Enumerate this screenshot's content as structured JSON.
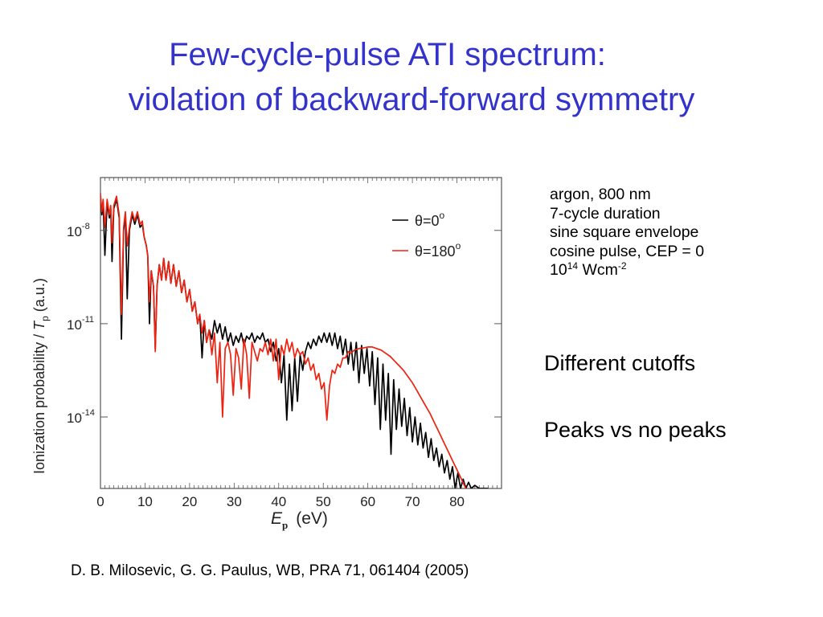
{
  "slide": {
    "title_line1": "Few-cycle-pulse ATI spectrum:",
    "title_line2": "violation of backward-forward symmetry",
    "title_color": "#3333cc",
    "parameters": {
      "line1": "argon,  800 nm",
      "line2": "7-cycle duration",
      "line3": "sine square envelope",
      "line4": "cosine pulse, CEP = 0",
      "line5_base": "10",
      "line5_exp": "14",
      "line5_unit": " Wcm",
      "line5_unit_exp": "-2"
    },
    "notes": [
      "Different cutoffs",
      "Peaks vs no peaks"
    ],
    "citation": "D. B. Milosevic, G. G. Paulus, WB,  PRA 71, 061404 (2005)"
  },
  "chart_data": {
    "type": "line",
    "title": "",
    "xlabel_main": "E",
    "xlabel_sub": "p",
    "xlabel_unit": "(eV)",
    "ylabel_main": "Ionization probability / ",
    "ylabel_T": "T",
    "ylabel_sub": "p",
    "ylabel_unit": " (a.u.)",
    "y_scale": "log",
    "xlim": [
      0,
      90
    ],
    "ylim_log10": [
      -16.3,
      -6.3
    ],
    "x_ticks": [
      0,
      10,
      20,
      30,
      40,
      50,
      60,
      70,
      80
    ],
    "x_tick_labels": [
      "0",
      "10",
      "20",
      "30",
      "40",
      "50",
      "60",
      "70",
      "80"
    ],
    "y_ticks_log10": [
      -8,
      -11,
      -14
    ],
    "y_tick_labels": [
      {
        "base": "10",
        "exp": "-8"
      },
      {
        "base": "10",
        "exp": "-11"
      },
      {
        "base": "10",
        "exp": "-14"
      }
    ],
    "legend": {
      "placement": "top-right",
      "entries": [
        {
          "label_prefix": "θ=0",
          "label_sup": "o",
          "color": "#000000"
        },
        {
          "label_prefix": "θ=180",
          "label_sup": "o",
          "color": "#ee2211"
        }
      ]
    },
    "series": [
      {
        "name": "θ=0°",
        "color": "#000000",
        "points_log10": [
          [
            0,
            -6.9
          ],
          [
            0.3,
            -7.5
          ],
          [
            0.6,
            -7.1
          ],
          [
            1.0,
            -8.8
          ],
          [
            1.5,
            -7.1
          ],
          [
            2.0,
            -7.6
          ],
          [
            2.3,
            -7.3
          ],
          [
            2.6,
            -9.0
          ],
          [
            3.0,
            -7.3
          ],
          [
            3.6,
            -7.0
          ],
          [
            4.2,
            -7.6
          ],
          [
            4.7,
            -11.5
          ],
          [
            5.2,
            -8.0
          ],
          [
            5.6,
            -7.5
          ],
          [
            6.0,
            -10.2
          ],
          [
            6.5,
            -8.0
          ],
          [
            7.1,
            -7.5
          ],
          [
            7.7,
            -7.8
          ],
          [
            8.3,
            -7.5
          ],
          [
            8.9,
            -7.9
          ],
          [
            9.4,
            -7.8
          ],
          [
            9.8,
            -8.2
          ],
          [
            10.3,
            -8.5
          ],
          [
            10.6,
            -8.8
          ],
          [
            11.0,
            -11.0
          ],
          [
            11.4,
            -9.3
          ],
          [
            11.9,
            -9.8
          ],
          [
            12.3,
            -11.8
          ],
          [
            12.7,
            -9.8
          ],
          [
            13.2,
            -9.1
          ],
          [
            13.7,
            -9.6
          ],
          [
            14.2,
            -8.9
          ],
          [
            14.7,
            -9.6
          ],
          [
            15.3,
            -9.0
          ],
          [
            15.8,
            -9.7
          ],
          [
            16.4,
            -9.1
          ],
          [
            17.0,
            -9.8
          ],
          [
            17.6,
            -9.3
          ],
          [
            18.2,
            -10.0
          ],
          [
            18.8,
            -9.6
          ],
          [
            19.4,
            -10.3
          ],
          [
            20.0,
            -9.9
          ],
          [
            20.6,
            -10.6
          ],
          [
            21.2,
            -10.3
          ],
          [
            21.8,
            -11.0
          ],
          [
            22.3,
            -10.7
          ],
          [
            22.8,
            -12.1
          ],
          [
            23.3,
            -10.9
          ],
          [
            23.8,
            -11.6
          ],
          [
            24.4,
            -11.2
          ],
          [
            25.0,
            -11.5
          ],
          [
            25.6,
            -10.9
          ],
          [
            26.2,
            -11.3
          ],
          [
            26.8,
            -11.0
          ],
          [
            27.4,
            -11.5
          ],
          [
            28.0,
            -11.1
          ],
          [
            28.6,
            -11.6
          ],
          [
            29.2,
            -11.3
          ],
          [
            29.8,
            -11.7
          ],
          [
            30.4,
            -11.4
          ],
          [
            31.0,
            -11.6
          ],
          [
            31.6,
            -11.3
          ],
          [
            32.2,
            -11.7
          ],
          [
            32.8,
            -11.4
          ],
          [
            33.4,
            -11.5
          ],
          [
            34.0,
            -11.3
          ],
          [
            34.6,
            -11.6
          ],
          [
            35.2,
            -11.4
          ],
          [
            35.8,
            -11.5
          ],
          [
            36.4,
            -11.3
          ],
          [
            37.0,
            -11.6
          ],
          [
            37.6,
            -11.5
          ],
          [
            38.2,
            -11.9
          ],
          [
            38.8,
            -11.6
          ],
          [
            39.4,
            -12.2
          ],
          [
            40.0,
            -11.8
          ],
          [
            40.6,
            -12.9
          ],
          [
            41.2,
            -12.0
          ],
          [
            41.8,
            -14.1
          ],
          [
            42.4,
            -12.3
          ],
          [
            43.0,
            -13.8
          ],
          [
            43.6,
            -12.1
          ],
          [
            44.2,
            -13.5
          ],
          [
            44.8,
            -12.0
          ],
          [
            45.4,
            -12.5
          ],
          [
            46.0,
            -11.9
          ],
          [
            46.6,
            -11.6
          ],
          [
            47.2,
            -11.8
          ],
          [
            47.8,
            -11.5
          ],
          [
            48.4,
            -11.7
          ],
          [
            49.0,
            -11.4
          ],
          [
            49.6,
            -11.6
          ],
          [
            50.2,
            -11.3
          ],
          [
            50.8,
            -11.6
          ],
          [
            51.4,
            -11.3
          ],
          [
            52.0,
            -11.7
          ],
          [
            52.6,
            -11.3
          ],
          [
            53.2,
            -11.8
          ],
          [
            53.8,
            -11.4
          ],
          [
            54.4,
            -12.0
          ],
          [
            55.0,
            -11.5
          ],
          [
            55.6,
            -12.3
          ],
          [
            56.2,
            -11.6
          ],
          [
            56.8,
            -12.5
          ],
          [
            57.4,
            -11.6
          ],
          [
            58.0,
            -12.9
          ],
          [
            58.6,
            -11.7
          ],
          [
            59.2,
            -12.6
          ],
          [
            59.8,
            -11.8
          ],
          [
            60.4,
            -13.0
          ],
          [
            61.0,
            -11.9
          ],
          [
            61.6,
            -13.6
          ],
          [
            62.2,
            -12.1
          ],
          [
            62.8,
            -14.4
          ],
          [
            63.4,
            -12.3
          ],
          [
            64.0,
            -14.1
          ],
          [
            64.6,
            -12.6
          ],
          [
            65.2,
            -15.2
          ],
          [
            65.8,
            -12.8
          ],
          [
            66.4,
            -14.4
          ],
          [
            67.0,
            -13.1
          ],
          [
            67.6,
            -14.3
          ],
          [
            68.2,
            -13.4
          ],
          [
            68.8,
            -14.6
          ],
          [
            69.4,
            -13.7
          ],
          [
            70.0,
            -14.8
          ],
          [
            70.6,
            -14.0
          ],
          [
            71.2,
            -14.9
          ],
          [
            71.8,
            -14.2
          ],
          [
            72.4,
            -15.0
          ],
          [
            73.0,
            -14.5
          ],
          [
            73.6,
            -15.3
          ],
          [
            74.2,
            -14.7
          ],
          [
            74.8,
            -15.4
          ],
          [
            75.4,
            -15.0
          ],
          [
            76.0,
            -15.6
          ],
          [
            76.6,
            -15.2
          ],
          [
            77.2,
            -15.8
          ],
          [
            77.8,
            -15.4
          ],
          [
            78.4,
            -16.0
          ],
          [
            79.0,
            -15.6
          ],
          [
            79.6,
            -16.3
          ],
          [
            80.2,
            -15.8
          ],
          [
            80.8,
            -16.3
          ],
          [
            81.4,
            -16.0
          ],
          [
            82.0,
            -16.3
          ],
          [
            82.6,
            -16.1
          ],
          [
            83.2,
            -16.3
          ],
          [
            84.0,
            -16.2
          ],
          [
            85.0,
            -16.3
          ],
          [
            86.0,
            -16.3
          ],
          [
            87.0,
            -16.3
          ]
        ]
      },
      {
        "name": "θ=180°",
        "color": "#ee2211",
        "points_log10": [
          [
            0,
            -6.8
          ],
          [
            0.3,
            -7.4
          ],
          [
            0.6,
            -7.0
          ],
          [
            1.0,
            -7.9
          ],
          [
            1.5,
            -7.0
          ],
          [
            2.0,
            -7.5
          ],
          [
            2.3,
            -7.2
          ],
          [
            2.6,
            -8.4
          ],
          [
            3.0,
            -7.2
          ],
          [
            3.6,
            -6.9
          ],
          [
            4.2,
            -7.5
          ],
          [
            4.7,
            -10.7
          ],
          [
            5.2,
            -7.9
          ],
          [
            5.6,
            -7.4
          ],
          [
            6.0,
            -8.5
          ],
          [
            6.5,
            -7.9
          ],
          [
            7.1,
            -7.4
          ],
          [
            7.7,
            -7.7
          ],
          [
            8.3,
            -7.4
          ],
          [
            8.9,
            -7.8
          ],
          [
            9.4,
            -7.7
          ],
          [
            9.8,
            -8.2
          ],
          [
            10.3,
            -8.5
          ],
          [
            10.6,
            -8.8
          ],
          [
            11.0,
            -10.3
          ],
          [
            11.4,
            -9.3
          ],
          [
            11.9,
            -9.8
          ],
          [
            12.3,
            -11.9
          ],
          [
            12.7,
            -9.8
          ],
          [
            13.2,
            -9.1
          ],
          [
            13.7,
            -9.6
          ],
          [
            14.2,
            -8.9
          ],
          [
            14.7,
            -9.6
          ],
          [
            15.3,
            -9.0
          ],
          [
            15.8,
            -9.7
          ],
          [
            16.4,
            -9.1
          ],
          [
            17.0,
            -9.8
          ],
          [
            17.6,
            -9.3
          ],
          [
            18.2,
            -10.0
          ],
          [
            18.8,
            -9.6
          ],
          [
            19.4,
            -10.3
          ],
          [
            20.0,
            -9.9
          ],
          [
            20.6,
            -10.6
          ],
          [
            21.2,
            -10.3
          ],
          [
            21.8,
            -11.0
          ],
          [
            22.3,
            -10.7
          ],
          [
            22.8,
            -11.3
          ],
          [
            23.3,
            -10.9
          ],
          [
            23.8,
            -11.6
          ],
          [
            24.4,
            -11.2
          ],
          [
            25.0,
            -12.0
          ],
          [
            25.6,
            -11.3
          ],
          [
            26.2,
            -12.9
          ],
          [
            26.8,
            -11.6
          ],
          [
            27.4,
            -14.0
          ],
          [
            28.0,
            -11.8
          ],
          [
            28.6,
            -11.6
          ],
          [
            29.2,
            -12.0
          ],
          [
            29.8,
            -13.3
          ],
          [
            30.4,
            -11.8
          ],
          [
            31.0,
            -12.1
          ],
          [
            31.6,
            -13.1
          ],
          [
            32.2,
            -11.5
          ],
          [
            32.8,
            -12.0
          ],
          [
            33.4,
            -13.4
          ],
          [
            34.0,
            -11.6
          ],
          [
            34.6,
            -11.9
          ],
          [
            35.2,
            -12.2
          ],
          [
            35.8,
            -11.8
          ],
          [
            36.4,
            -11.9
          ],
          [
            37.0,
            -11.6
          ],
          [
            37.6,
            -12.0
          ],
          [
            38.2,
            -11.5
          ],
          [
            38.8,
            -12.2
          ],
          [
            39.4,
            -11.5
          ],
          [
            40.0,
            -12.8
          ],
          [
            40.6,
            -11.7
          ],
          [
            41.2,
            -12.0
          ],
          [
            41.8,
            -11.5
          ],
          [
            42.4,
            -11.9
          ],
          [
            43.0,
            -11.6
          ],
          [
            43.6,
            -12.1
          ],
          [
            44.2,
            -11.8
          ],
          [
            44.8,
            -12.0
          ],
          [
            45.4,
            -11.9
          ],
          [
            46.0,
            -12.3
          ],
          [
            46.6,
            -12.1
          ],
          [
            47.2,
            -12.5
          ],
          [
            47.8,
            -12.3
          ],
          [
            48.4,
            -12.8
          ],
          [
            49.0,
            -12.6
          ],
          [
            49.6,
            -13.1
          ],
          [
            50.2,
            -12.9
          ],
          [
            50.8,
            -14.1
          ],
          [
            51.4,
            -13.0
          ],
          [
            52.0,
            -12.5
          ],
          [
            52.6,
            -12.6
          ],
          [
            53.2,
            -12.3
          ],
          [
            53.8,
            -12.4
          ],
          [
            54.4,
            -12.1
          ],
          [
            55.0,
            -12.1
          ],
          [
            55.6,
            -11.9
          ],
          [
            56.2,
            -11.95
          ],
          [
            57.0,
            -11.85
          ],
          [
            58.0,
            -11.8
          ],
          [
            59.0,
            -11.78
          ],
          [
            60.0,
            -11.75
          ],
          [
            61.0,
            -11.75
          ],
          [
            62.0,
            -11.8
          ],
          [
            63.0,
            -11.85
          ],
          [
            64.0,
            -11.95
          ],
          [
            65.0,
            -12.05
          ],
          [
            66.0,
            -12.2
          ],
          [
            67.0,
            -12.35
          ],
          [
            68.0,
            -12.5
          ],
          [
            69.0,
            -12.7
          ],
          [
            70.0,
            -12.9
          ],
          [
            71.0,
            -13.15
          ],
          [
            72.0,
            -13.4
          ],
          [
            73.0,
            -13.65
          ],
          [
            74.0,
            -13.9
          ],
          [
            75.0,
            -14.2
          ],
          [
            76.0,
            -14.5
          ],
          [
            77.0,
            -14.8
          ],
          [
            78.0,
            -15.1
          ],
          [
            79.0,
            -15.4
          ],
          [
            80.0,
            -15.7
          ],
          [
            81.0,
            -16.0
          ],
          [
            82.0,
            -16.3
          ]
        ]
      }
    ]
  }
}
